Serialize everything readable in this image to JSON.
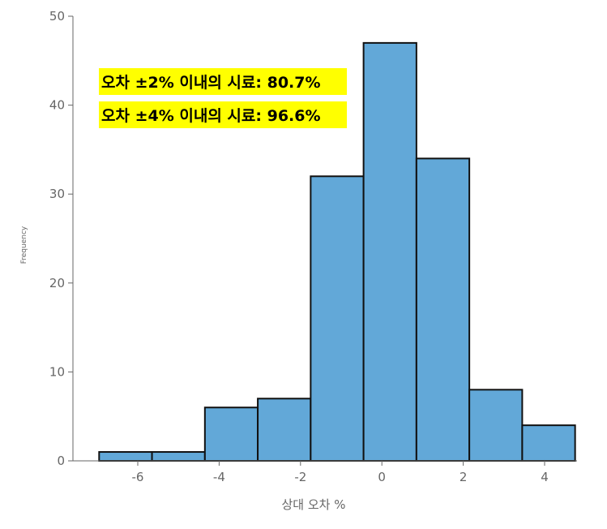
{
  "chart_data": {
    "type": "bar",
    "subtype": "histogram",
    "title": "",
    "xlabel": "상대 오차 %",
    "ylabel": "Frequency",
    "xlim": [
      -7.5,
      5.0
    ],
    "ylim": [
      0,
      50
    ],
    "grid": false,
    "legend": "none",
    "x_ticks": [
      -6,
      -4,
      -2,
      0,
      2,
      4
    ],
    "x_tick_labels": [
      "-6",
      "-4",
      "-2",
      "0",
      "2",
      "4"
    ],
    "y_ticks": [
      0,
      10,
      20,
      30,
      40,
      50
    ],
    "y_tick_labels": [
      "0",
      "10",
      "20",
      "30",
      "40",
      "50"
    ],
    "bins": [
      {
        "x0": -6.95,
        "x1": -5.65,
        "count": 1
      },
      {
        "x0": -5.65,
        "x1": -4.35,
        "count": 1
      },
      {
        "x0": -4.35,
        "x1": -3.05,
        "count": 6
      },
      {
        "x0": -3.05,
        "x1": -1.75,
        "count": 7
      },
      {
        "x0": -1.75,
        "x1": -0.45,
        "count": 32
      },
      {
        "x0": -0.45,
        "x1": 0.85,
        "count": 47
      },
      {
        "x0": 0.85,
        "x1": 2.15,
        "count": 34
      },
      {
        "x0": 2.15,
        "x1": 3.45,
        "count": 8
      },
      {
        "x0": 3.45,
        "x1": 4.75,
        "count": 4
      }
    ],
    "bar_color": "#62a8d8",
    "bar_edge_color": "#111111",
    "annotations": [
      {
        "text": "오차 ±2% 이내의 시료: 80.7%",
        "highlight": "#ffff00"
      },
      {
        "text": "오차 ±4% 이내의 시료: 96.6%",
        "highlight": "#ffff00"
      }
    ]
  }
}
